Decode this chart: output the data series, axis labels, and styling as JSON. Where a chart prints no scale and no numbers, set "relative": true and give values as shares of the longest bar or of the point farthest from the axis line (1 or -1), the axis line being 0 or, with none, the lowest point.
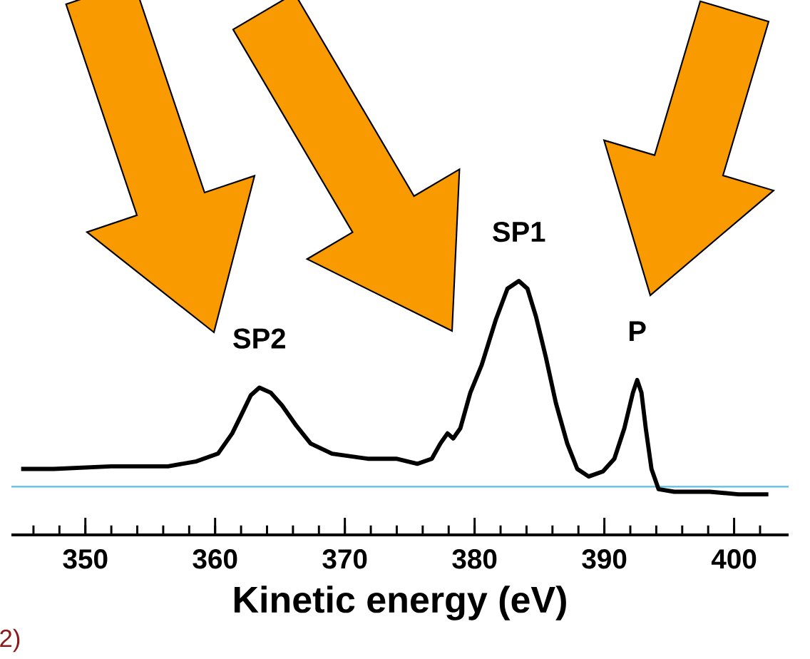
{
  "chart_data": {
    "type": "line",
    "xlabel": "Kinetic energy (eV)",
    "relative": true,
    "xlim": [
      344.3,
      404.2
    ],
    "xticks": [
      {
        "value": 346,
        "label": null
      },
      {
        "value": 348,
        "label": null
      },
      350,
      {
        "value": 352,
        "label": null
      },
      {
        "value": 354,
        "label": null
      },
      {
        "value": 356,
        "label": null
      },
      {
        "value": 358,
        "label": null
      },
      360,
      {
        "value": 362,
        "label": null
      },
      {
        "value": 364,
        "label": null
      },
      {
        "value": 366,
        "label": null
      },
      {
        "value": 368,
        "label": null
      },
      370,
      {
        "value": 372,
        "label": null
      },
      {
        "value": 374,
        "label": null
      },
      {
        "value": 376,
        "label": null
      },
      {
        "value": 378,
        "label": null
      },
      380,
      {
        "value": 382,
        "label": null
      },
      {
        "value": 384,
        "label": null
      },
      {
        "value": 386,
        "label": null
      },
      {
        "value": 388,
        "label": null
      },
      390,
      {
        "value": 392,
        "label": null
      },
      {
        "value": 394,
        "label": null
      },
      {
        "value": 396,
        "label": null
      },
      {
        "value": 398,
        "label": null
      },
      400,
      {
        "value": 402,
        "label": null
      }
    ],
    "series": [
      {
        "color": "#000000",
        "x": [
          345.05,
          347.58,
          351.98,
          356.37,
          358.57,
          360.22,
          361.32,
          362.09,
          362.75,
          363.41,
          364.29,
          365.16,
          366.26,
          367.36,
          369.01,
          371.76,
          373.96,
          375.6,
          376.7,
          377.36,
          377.91,
          378.35,
          378.9,
          379.67,
          380.55,
          381.65,
          382.53,
          383.41,
          384.07,
          384.73,
          385.49,
          386.26,
          387.14,
          387.91,
          388.79,
          389.89,
          390.77,
          391.54,
          392.2,
          392.53,
          392.86,
          393.19,
          393.63,
          394.18,
          395.38,
          398.13,
          400.33,
          402.64
        ],
        "values": [
          0.26,
          0.26,
          0.27,
          0.27,
          0.29,
          0.32,
          0.4,
          0.48,
          0.55,
          0.58,
          0.56,
          0.51,
          0.43,
          0.36,
          0.32,
          0.3,
          0.3,
          0.28,
          0.3,
          0.36,
          0.4,
          0.38,
          0.42,
          0.56,
          0.67,
          0.85,
          0.97,
          1,
          0.97,
          0.86,
          0.7,
          0.52,
          0.36,
          0.26,
          0.23,
          0.25,
          0.3,
          0.42,
          0.56,
          0.61,
          0.56,
          0.42,
          0.26,
          0.18,
          0.17,
          0.17,
          0.16,
          0.16
        ]
      }
    ],
    "ref_lines": [
      {
        "axis": "y",
        "value": 0.19,
        "color": "#5bbce4"
      }
    ],
    "annotations": [
      {
        "text": "SP2",
        "x": 363.41,
        "y": 0.58
      },
      {
        "text": "SP1",
        "x": 383.41,
        "y": 1
      },
      {
        "text": "P",
        "x": 392.53,
        "y": 0.61
      },
      "2)"
    ],
    "marker": "none",
    "line_style": "solid",
    "grid": false,
    "legend": false
  }
}
